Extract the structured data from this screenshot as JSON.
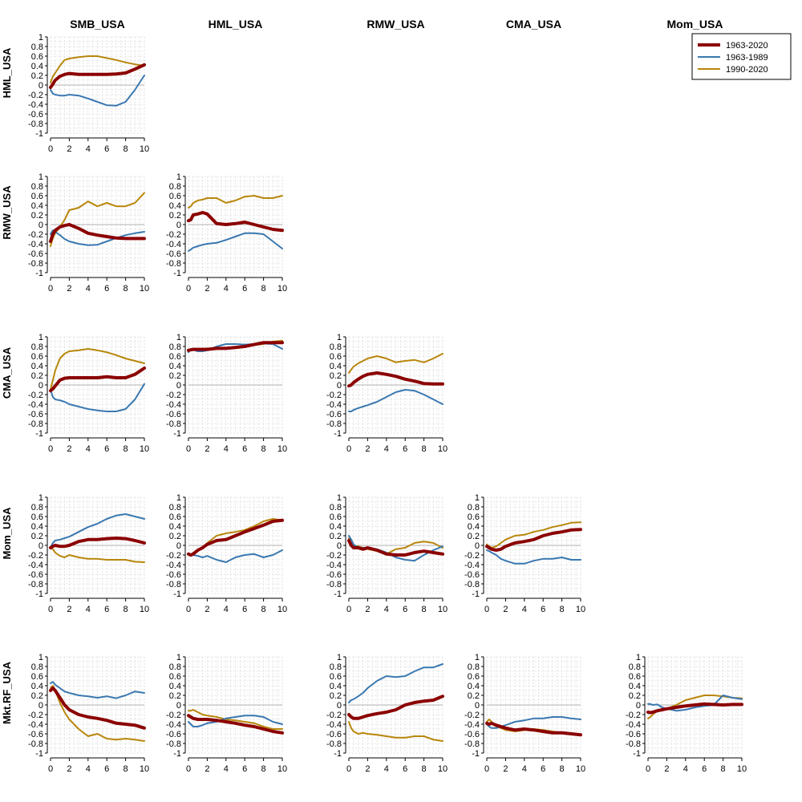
{
  "chart_data": {
    "type": "line",
    "column_titles": [
      "SMB_USA",
      "HML_USA",
      "RMW_USA",
      "CMA_USA",
      "Mom_USA"
    ],
    "row_titles": [
      "HML_USA",
      "RMW_USA",
      "CMA_USA",
      "Mom_USA",
      "Mkt.RF_USA"
    ],
    "x_ticks": [
      "0",
      "2",
      "4",
      "6",
      "8",
      "10"
    ],
    "y_ticks": [
      "1",
      "0.8",
      "0.6",
      "0.4",
      "0.2",
      "0",
      "-0.2",
      "-0.4",
      "-0.6",
      "-0.8",
      "-1"
    ],
    "xlim": [
      0,
      10
    ],
    "ylim": [
      -1,
      1
    ],
    "grid": true,
    "legend": {
      "position": "top-right",
      "entries": [
        {
          "name": "1963-2020",
          "color": "#8b0000",
          "width": 4
        },
        {
          "name": "1963-1989",
          "color": "#3a78b0",
          "width": 2
        },
        {
          "name": "1990-2020",
          "color": "#b8860b",
          "width": 2
        }
      ]
    },
    "x": [
      0,
      0.25,
      0.5,
      1,
      1.5,
      2,
      3,
      4,
      5,
      6,
      7,
      8,
      9,
      10
    ],
    "panels": [
      {
        "row": "HML_USA",
        "col": "SMB_USA",
        "series": [
          {
            "name": "1963-2020",
            "values": [
              -0.05,
              0.02,
              0.1,
              0.18,
              0.22,
              0.24,
              0.22,
              0.22,
              0.22,
              0.22,
              0.23,
              0.25,
              0.33,
              0.42
            ]
          },
          {
            "name": "1963-1989",
            "values": [
              -0.1,
              -0.18,
              -0.2,
              -0.22,
              -0.22,
              -0.2,
              -0.22,
              -0.28,
              -0.35,
              -0.42,
              -0.43,
              -0.35,
              -0.1,
              0.2
            ]
          },
          {
            "name": "1990-2020",
            "values": [
              0.05,
              0.18,
              0.25,
              0.4,
              0.52,
              0.55,
              0.58,
              0.6,
              0.6,
              0.56,
              0.52,
              0.47,
              0.43,
              0.4
            ]
          }
        ]
      },
      {
        "row": "RMW_USA",
        "col": "SMB_USA",
        "series": [
          {
            "name": "1963-2020",
            "values": [
              -0.35,
              -0.2,
              -0.12,
              -0.05,
              -0.02,
              0,
              -0.08,
              -0.18,
              -0.22,
              -0.25,
              -0.28,
              -0.29,
              -0.29,
              -0.29
            ]
          },
          {
            "name": "1963-1989",
            "values": [
              -0.2,
              -0.12,
              -0.15,
              -0.22,
              -0.3,
              -0.35,
              -0.4,
              -0.43,
              -0.42,
              -0.35,
              -0.28,
              -0.22,
              -0.18,
              -0.15
            ]
          },
          {
            "name": "1990-2020",
            "values": [
              -0.45,
              -0.28,
              -0.18,
              -0.05,
              0.1,
              0.3,
              0.35,
              0.48,
              0.38,
              0.45,
              0.38,
              0.38,
              0.45,
              0.66
            ]
          }
        ]
      },
      {
        "row": "RMW_USA",
        "col": "HML_USA",
        "series": [
          {
            "name": "1963-2020",
            "values": [
              0.08,
              0.1,
              0.2,
              0.22,
              0.25,
              0.22,
              0.02,
              0,
              0.02,
              0.05,
              0,
              -0.05,
              -0.1,
              -0.12
            ]
          },
          {
            "name": "1963-1989",
            "values": [
              -0.55,
              -0.52,
              -0.48,
              -0.45,
              -0.42,
              -0.4,
              -0.38,
              -0.32,
              -0.25,
              -0.18,
              -0.18,
              -0.2,
              -0.35,
              -0.5
            ]
          },
          {
            "name": "1990-2020",
            "values": [
              0.35,
              0.38,
              0.45,
              0.5,
              0.52,
              0.55,
              0.55,
              0.45,
              0.5,
              0.58,
              0.6,
              0.55,
              0.55,
              0.6
            ]
          }
        ]
      },
      {
        "row": "CMA_USA",
        "col": "SMB_USA",
        "series": [
          {
            "name": "1963-2020",
            "values": [
              -0.12,
              -0.08,
              -0.02,
              0.1,
              0.14,
              0.15,
              0.15,
              0.15,
              0.15,
              0.17,
              0.15,
              0.15,
              0.22,
              0.35
            ]
          },
          {
            "name": "1963-1989",
            "values": [
              -0.1,
              -0.25,
              -0.3,
              -0.32,
              -0.35,
              -0.4,
              -0.45,
              -0.5,
              -0.53,
              -0.55,
              -0.55,
              -0.5,
              -0.3,
              0.02
            ]
          },
          {
            "name": "1990-2020",
            "values": [
              -0.1,
              0.1,
              0.3,
              0.55,
              0.65,
              0.7,
              0.72,
              0.75,
              0.72,
              0.68,
              0.62,
              0.55,
              0.5,
              0.45
            ]
          }
        ]
      },
      {
        "row": "CMA_USA",
        "col": "HML_USA",
        "series": [
          {
            "name": "1963-2020",
            "values": [
              0.72,
              0.73,
              0.74,
              0.74,
              0.74,
              0.74,
              0.76,
              0.76,
              0.78,
              0.8,
              0.84,
              0.88,
              0.88,
              0.88
            ]
          },
          {
            "name": "1963-1989",
            "values": [
              0.68,
              0.75,
              0.73,
              0.7,
              0.7,
              0.72,
              0.8,
              0.85,
              0.85,
              0.84,
              0.85,
              0.86,
              0.85,
              0.75
            ]
          },
          {
            "name": "1990-2020",
            "values": [
              0.7,
              0.74,
              0.75,
              0.75,
              0.75,
              0.76,
              0.76,
              0.76,
              0.78,
              0.8,
              0.83,
              0.85,
              0.9,
              0.92
            ]
          }
        ]
      },
      {
        "row": "CMA_USA",
        "col": "RMW_USA",
        "series": [
          {
            "name": "1963-2020",
            "values": [
              -0.02,
              0,
              0.05,
              0.12,
              0.18,
              0.22,
              0.25,
              0.22,
              0.18,
              0.12,
              0.08,
              0.03,
              0.02,
              0.02
            ]
          },
          {
            "name": "1963-1989",
            "values": [
              -0.55,
              -0.55,
              -0.52,
              -0.48,
              -0.45,
              -0.42,
              -0.35,
              -0.25,
              -0.15,
              -0.1,
              -0.12,
              -0.2,
              -0.3,
              -0.4
            ]
          },
          {
            "name": "1990-2020",
            "values": [
              0.25,
              0.32,
              0.38,
              0.45,
              0.5,
              0.55,
              0.6,
              0.55,
              0.47,
              0.5,
              0.52,
              0.47,
              0.55,
              0.65
            ]
          }
        ]
      },
      {
        "row": "Mom_USA",
        "col": "SMB_USA",
        "series": [
          {
            "name": "1963-2020",
            "values": [
              -0.05,
              -0.02,
              0,
              -0.02,
              -0.02,
              0,
              0.08,
              0.12,
              0.12,
              0.14,
              0.15,
              0.14,
              0.1,
              0.05
            ]
          },
          {
            "name": "1963-1989",
            "values": [
              -0.05,
              0.05,
              0.1,
              0.12,
              0.15,
              0.18,
              0.28,
              0.38,
              0.45,
              0.55,
              0.62,
              0.65,
              0.6,
              0.55
            ]
          },
          {
            "name": "1990-2020",
            "values": [
              -0.05,
              -0.08,
              -0.15,
              -0.22,
              -0.25,
              -0.2,
              -0.25,
              -0.28,
              -0.28,
              -0.3,
              -0.3,
              -0.3,
              -0.34,
              -0.35
            ]
          }
        ]
      },
      {
        "row": "Mom_USA",
        "col": "HML_USA",
        "series": [
          {
            "name": "1963-2020",
            "values": [
              -0.18,
              -0.2,
              -0.18,
              -0.1,
              -0.05,
              0.02,
              0.1,
              0.12,
              0.2,
              0.28,
              0.35,
              0.42,
              0.5,
              0.52
            ]
          },
          {
            "name": "1963-1989",
            "values": [
              -0.18,
              -0.22,
              -0.2,
              -0.22,
              -0.25,
              -0.22,
              -0.3,
              -0.35,
              -0.25,
              -0.2,
              -0.18,
              -0.25,
              -0.2,
              -0.1
            ]
          },
          {
            "name": "1990-2020",
            "values": [
              -0.2,
              -0.22,
              -0.15,
              -0.12,
              -0.05,
              0.05,
              0.2,
              0.25,
              0.28,
              0.32,
              0.4,
              0.5,
              0.55,
              0.52
            ]
          }
        ]
      },
      {
        "row": "Mom_USA",
        "col": "RMW_USA",
        "series": [
          {
            "name": "1963-2020",
            "values": [
              0.1,
              0,
              -0.05,
              -0.05,
              -0.08,
              -0.05,
              -0.1,
              -0.18,
              -0.2,
              -0.2,
              -0.15,
              -0.12,
              -0.15,
              -0.18
            ]
          },
          {
            "name": "1963-1989",
            "values": [
              0.2,
              0.12,
              0.02,
              -0.05,
              -0.05,
              -0.05,
              -0.08,
              -0.15,
              -0.25,
              -0.3,
              -0.32,
              -0.2,
              -0.1,
              -0.02
            ]
          },
          {
            "name": "1990-2020",
            "values": [
              0.15,
              0.05,
              -0.02,
              -0.02,
              -0.05,
              -0.08,
              -0.12,
              -0.18,
              -0.08,
              -0.05,
              0.05,
              0.08,
              0.05,
              -0.05
            ]
          }
        ]
      },
      {
        "row": "Mom_USA",
        "col": "CMA_USA",
        "series": [
          {
            "name": "1963-2020",
            "values": [
              -0.02,
              -0.05,
              -0.08,
              -0.1,
              -0.08,
              -0.02,
              0.05,
              0.08,
              0.12,
              0.2,
              0.25,
              0.28,
              0.32,
              0.33
            ]
          },
          {
            "name": "1963-1989",
            "values": [
              -0.1,
              -0.12,
              -0.15,
              -0.2,
              -0.28,
              -0.32,
              -0.38,
              -0.38,
              -0.32,
              -0.28,
              -0.28,
              -0.25,
              -0.3,
              -0.3
            ]
          },
          {
            "name": "1990-2020",
            "values": [
              0.02,
              -0.02,
              -0.05,
              -0.02,
              0.05,
              0.12,
              0.2,
              0.22,
              0.28,
              0.32,
              0.38,
              0.42,
              0.47,
              0.48
            ]
          }
        ]
      },
      {
        "row": "Mkt.RF_USA",
        "col": "SMB_USA",
        "series": [
          {
            "name": "1963-2020",
            "values": [
              0.3,
              0.35,
              0.3,
              0.15,
              0,
              -0.1,
              -0.2,
              -0.25,
              -0.28,
              -0.32,
              -0.38,
              -0.4,
              -0.42,
              -0.48
            ]
          },
          {
            "name": "1963-1989",
            "values": [
              0.45,
              0.48,
              0.42,
              0.35,
              0.28,
              0.25,
              0.2,
              0.18,
              0.15,
              0.18,
              0.14,
              0.2,
              0.28,
              0.25
            ]
          },
          {
            "name": "1990-2020",
            "values": [
              0.35,
              0.4,
              0.3,
              0.05,
              -0.15,
              -0.3,
              -0.5,
              -0.65,
              -0.6,
              -0.7,
              -0.72,
              -0.7,
              -0.72,
              -0.75
            ]
          }
        ]
      },
      {
        "row": "Mkt.RF_USA",
        "col": "HML_USA",
        "series": [
          {
            "name": "1963-2020",
            "values": [
              -0.22,
              -0.25,
              -0.28,
              -0.3,
              -0.3,
              -0.3,
              -0.32,
              -0.35,
              -0.38,
              -0.42,
              -0.45,
              -0.5,
              -0.55,
              -0.58
            ]
          },
          {
            "name": "1963-1989",
            "values": [
              -0.35,
              -0.4,
              -0.45,
              -0.45,
              -0.42,
              -0.38,
              -0.35,
              -0.28,
              -0.25,
              -0.22,
              -0.22,
              -0.25,
              -0.35,
              -0.4
            ]
          },
          {
            "name": "1990-2020",
            "values": [
              -0.12,
              -0.12,
              -0.1,
              -0.15,
              -0.2,
              -0.22,
              -0.25,
              -0.3,
              -0.32,
              -0.35,
              -0.38,
              -0.45,
              -0.5,
              -0.5
            ]
          }
        ]
      },
      {
        "row": "Mkt.RF_USA",
        "col": "RMW_USA",
        "series": [
          {
            "name": "1963-2020",
            "values": [
              -0.2,
              -0.25,
              -0.28,
              -0.28,
              -0.25,
              -0.22,
              -0.18,
              -0.15,
              -0.1,
              0,
              0.05,
              0.08,
              0.1,
              0.18
            ]
          },
          {
            "name": "1963-1989",
            "values": [
              0.05,
              0.1,
              0.12,
              0.18,
              0.25,
              0.35,
              0.5,
              0.6,
              0.58,
              0.6,
              0.7,
              0.78,
              0.78,
              0.85
            ]
          },
          {
            "name": "1990-2020",
            "values": [
              -0.35,
              -0.48,
              -0.55,
              -0.6,
              -0.58,
              -0.6,
              -0.62,
              -0.65,
              -0.68,
              -0.68,
              -0.65,
              -0.65,
              -0.72,
              -0.75
            ]
          }
        ]
      },
      {
        "row": "Mkt.RF_USA",
        "col": "CMA_USA",
        "series": [
          {
            "name": "1963-2020",
            "values": [
              -0.38,
              -0.4,
              -0.38,
              -0.42,
              -0.45,
              -0.48,
              -0.52,
              -0.5,
              -0.52,
              -0.55,
              -0.58,
              -0.58,
              -0.6,
              -0.62
            ]
          },
          {
            "name": "1963-1989",
            "values": [
              -0.4,
              -0.45,
              -0.48,
              -0.48,
              -0.45,
              -0.42,
              -0.35,
              -0.32,
              -0.28,
              -0.28,
              -0.25,
              -0.25,
              -0.28,
              -0.3
            ]
          },
          {
            "name": "1990-2020",
            "values": [
              -0.35,
              -0.3,
              -0.35,
              -0.45,
              -0.48,
              -0.52,
              -0.55,
              -0.52,
              -0.5,
              -0.52,
              -0.55,
              -0.58,
              -0.6,
              -0.62
            ]
          }
        ]
      },
      {
        "row": "Mkt.RF_USA",
        "col": "Mom_USA",
        "series": [
          {
            "name": "1963-2020",
            "values": [
              -0.15,
              -0.16,
              -0.15,
              -0.12,
              -0.1,
              -0.08,
              -0.05,
              -0.02,
              0,
              0.02,
              0.01,
              0,
              0.01,
              0.01
            ]
          },
          {
            "name": "1963-1989",
            "values": [
              0.02,
              0.02,
              0,
              0.01,
              -0.05,
              -0.08,
              -0.12,
              -0.1,
              -0.05,
              -0.02,
              0,
              0.2,
              0.15,
              0.12
            ]
          },
          {
            "name": "1990-2020",
            "values": [
              -0.28,
              -0.25,
              -0.2,
              -0.12,
              -0.1,
              -0.08,
              0,
              0.1,
              0.15,
              0.2,
              0.2,
              0.18,
              0.15,
              0.14
            ]
          }
        ]
      }
    ]
  }
}
